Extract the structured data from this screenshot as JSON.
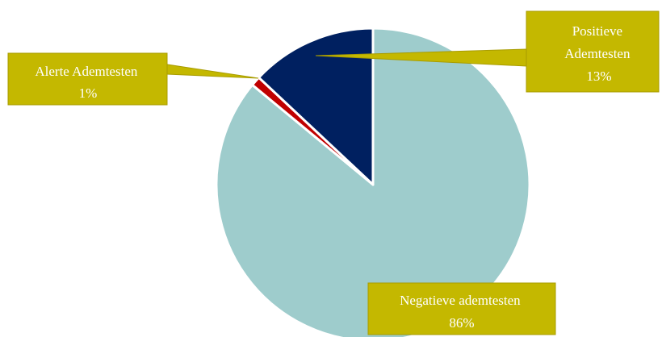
{
  "chart_data": {
    "type": "pie",
    "slices": [
      {
        "label": "Negatieve ademtesten",
        "value": 86,
        "percent_label": "86%",
        "color": "#9ecccc"
      },
      {
        "label": "Alerte Ademtesten",
        "value": 1,
        "percent_label": "1%",
        "color": "#c00000"
      },
      {
        "label": "Positieve Ademtesten",
        "label_lines": [
          "Positieve",
          "Ademtesten"
        ],
        "value": 13,
        "percent_label": "13%",
        "color": "#002060"
      }
    ],
    "start_angle": "12 o'clock",
    "direction": "clockwise",
    "callout_color": "#c4b800",
    "slice_border_color": "#ffffff"
  }
}
